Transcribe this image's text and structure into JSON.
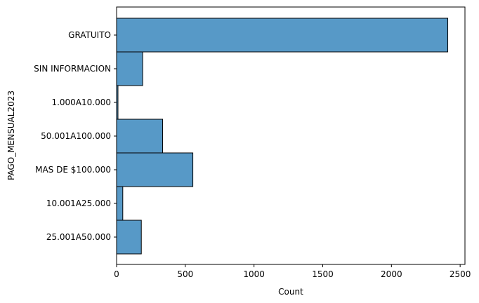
{
  "chart_data": {
    "type": "bar",
    "orientation": "horizontal",
    "categories": [
      "GRATUITO",
      "SIN INFORMACION",
      "1.000A10.000",
      "50.001A100.000",
      "MAS DE $100.000",
      "10.001A25.000",
      "25.001A50.000"
    ],
    "values": [
      2410,
      190,
      10,
      335,
      555,
      45,
      180
    ],
    "xlabel": "Count",
    "ylabel": "PAGO_MENSUAL2023",
    "xlim": [
      0,
      2535
    ],
    "xticks": [
      "0",
      "500",
      "1000",
      "1500",
      "2000",
      "2500"
    ],
    "grid": false,
    "colors": {
      "bar": "#5799c7",
      "edge": "#000000"
    }
  }
}
